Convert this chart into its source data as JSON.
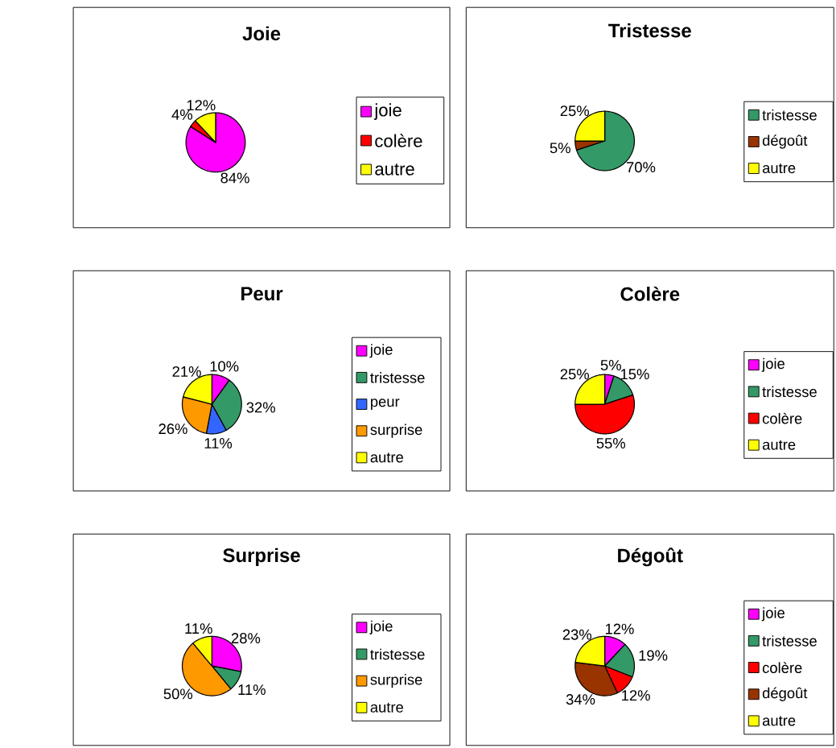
{
  "chart_data": [
    {
      "type": "pie",
      "title": "Joie",
      "categories": [
        "joie",
        "colère",
        "autre"
      ],
      "values": [
        84,
        4,
        12
      ],
      "colors": [
        "#ff00ff",
        "#ff0000",
        "#ffff00"
      ],
      "value_labels": [
        "84%",
        "4%",
        "12%"
      ],
      "legend": "right"
    },
    {
      "type": "pie",
      "title": "Tristesse",
      "categories": [
        "tristesse",
        "dégoût",
        "autre"
      ],
      "values": [
        70,
        5,
        25
      ],
      "colors": [
        "#339966",
        "#993300",
        "#ffff00"
      ],
      "value_labels": [
        "70%",
        "5%",
        "25%"
      ],
      "legend": "right"
    },
    {
      "type": "pie",
      "title": "Peur",
      "categories": [
        "joie",
        "tristesse",
        "peur",
        "surprise",
        "autre"
      ],
      "values": [
        10,
        32,
        11,
        26,
        21
      ],
      "colors": [
        "#ff00ff",
        "#339966",
        "#3366ff",
        "#ff9900",
        "#ffff00"
      ],
      "value_labels": [
        "10%",
        "32%",
        "11%",
        "26%",
        "21%"
      ],
      "legend": "right"
    },
    {
      "type": "pie",
      "title": "Colère",
      "categories": [
        "joie",
        "tristesse",
        "colère",
        "autre"
      ],
      "values": [
        5,
        15,
        55,
        25
      ],
      "colors": [
        "#ff00ff",
        "#339966",
        "#ff0000",
        "#ffff00"
      ],
      "value_labels": [
        "5%",
        "15%",
        "55%",
        "25%"
      ],
      "legend": "right"
    },
    {
      "type": "pie",
      "title": "Surprise",
      "categories": [
        "joie",
        "tristesse",
        "surprise",
        "autre"
      ],
      "values": [
        28,
        11,
        50,
        11
      ],
      "colors": [
        "#ff00ff",
        "#339966",
        "#ff9900",
        "#ffff00"
      ],
      "value_labels": [
        "28%",
        "11%",
        "50%",
        "11%"
      ],
      "legend": "right"
    },
    {
      "type": "pie",
      "title": "Dégoût",
      "categories": [
        "joie",
        "tristesse",
        "colère",
        "dégoût",
        "autre"
      ],
      "values": [
        12,
        19,
        12,
        34,
        23
      ],
      "colors": [
        "#ff00ff",
        "#339966",
        "#ff0000",
        "#993300",
        "#ffff00"
      ],
      "value_labels": [
        "12%",
        "19%",
        "12%",
        "34%",
        "23%"
      ],
      "legend": "right"
    }
  ]
}
